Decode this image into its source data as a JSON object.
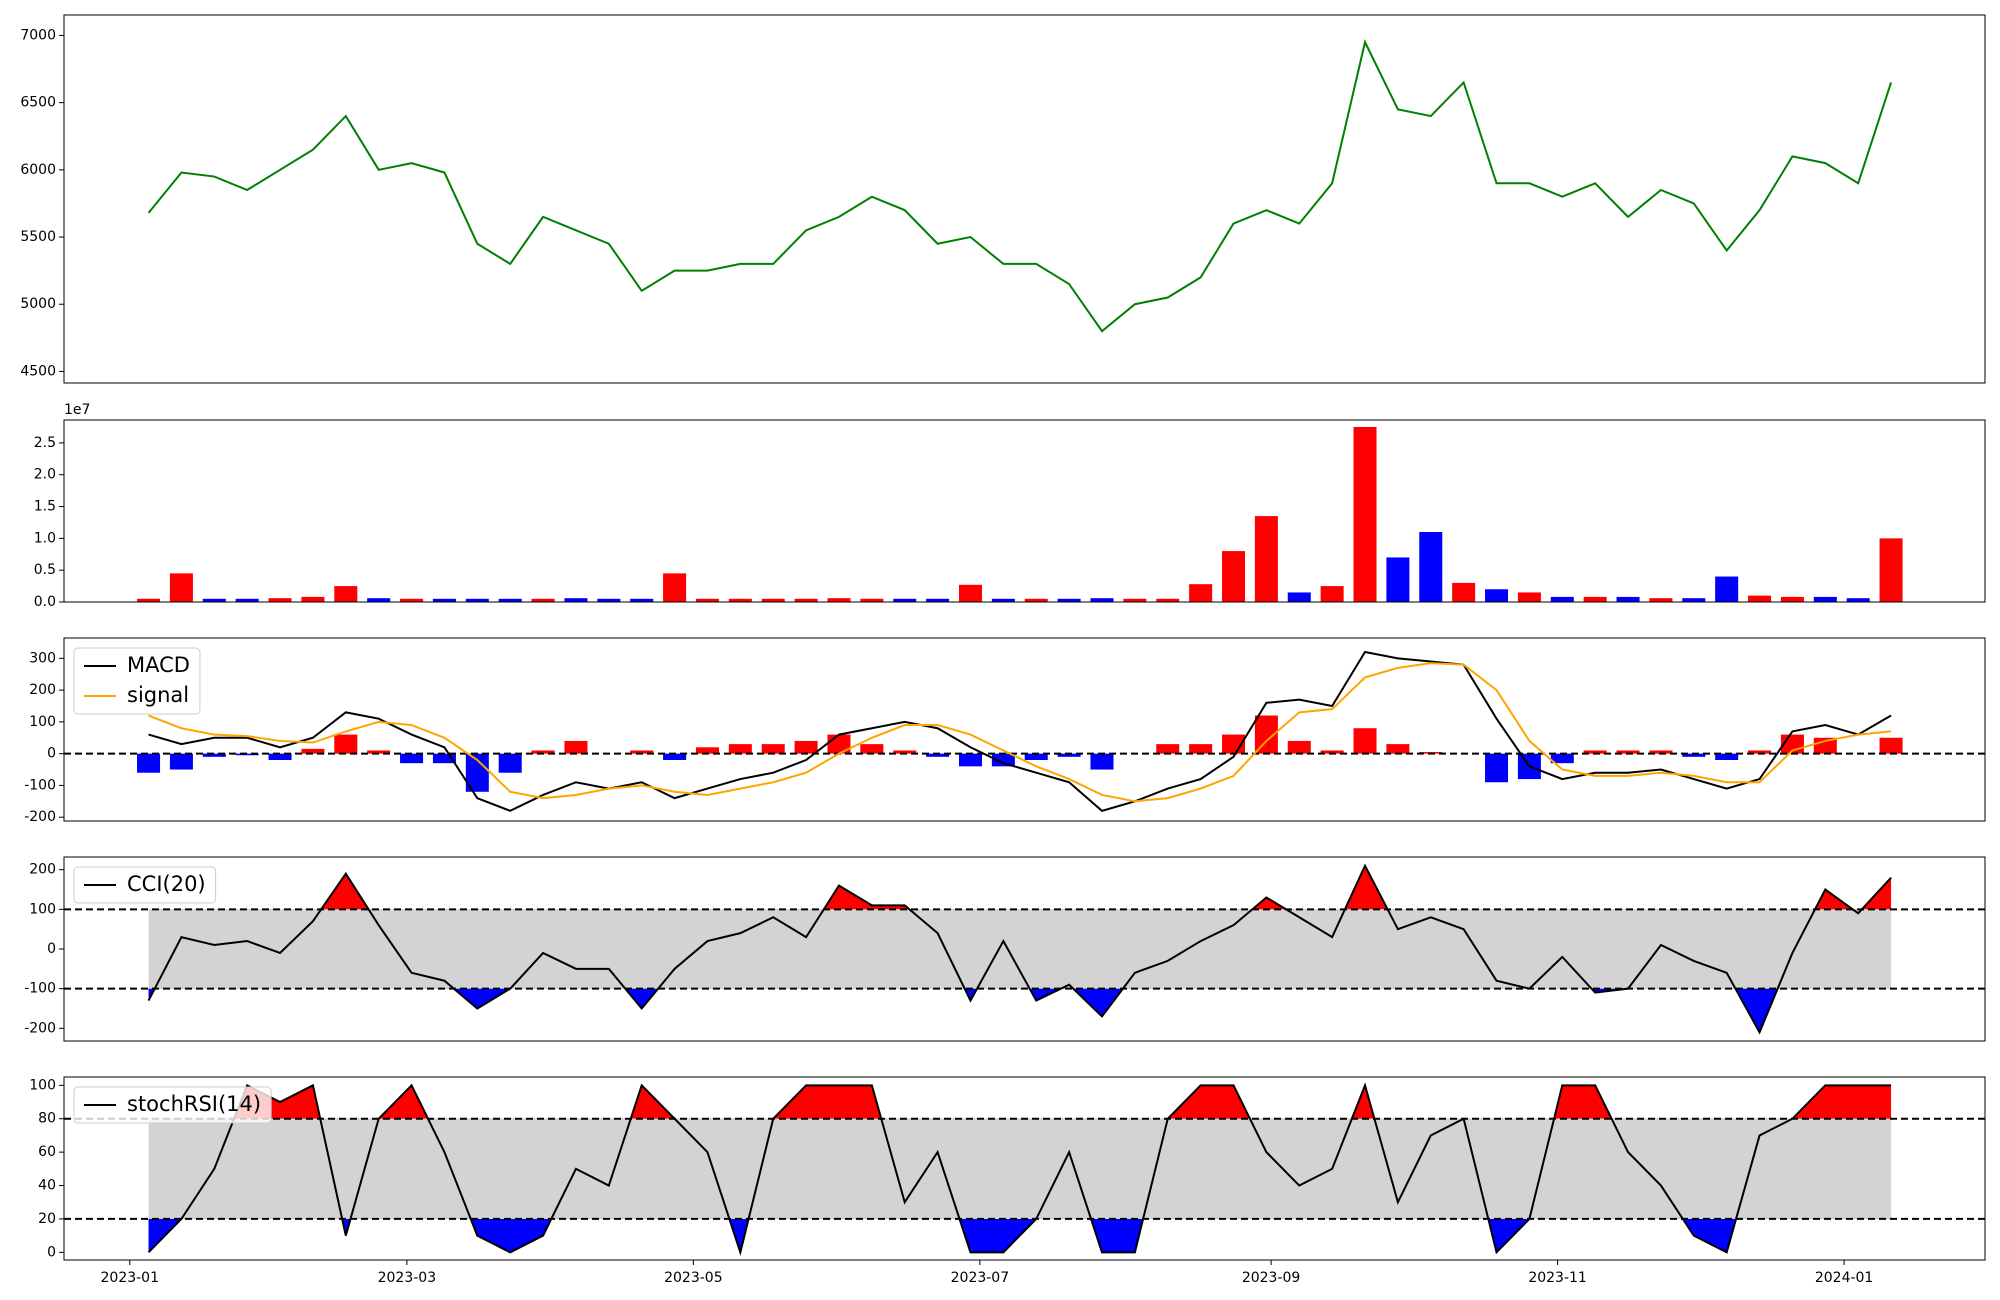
{
  "chart_data": [
    {
      "type": "line",
      "x": [
        4,
        11,
        18,
        25,
        32,
        39,
        46,
        53,
        60,
        67,
        74,
        81,
        88,
        95,
        102,
        109,
        116,
        123,
        130,
        137,
        144,
        151,
        158,
        165,
        172,
        179,
        186,
        193,
        200,
        207,
        214,
        221,
        228,
        235,
        242,
        249,
        256,
        263,
        270,
        277,
        284,
        291,
        298,
        305,
        312,
        319,
        326,
        333,
        340,
        347,
        354,
        361,
        368,
        375
      ],
      "series": [
        {
          "color": "green",
          "values": [
            5680,
            5980,
            5950,
            5850,
            6000,
            6150,
            6400,
            6000,
            6050,
            5980,
            5450,
            5300,
            5650,
            5550,
            5450,
            5100,
            5250,
            5250,
            5300,
            5300,
            5550,
            5650,
            5800,
            5700,
            5450,
            5500,
            5300,
            5300,
            5150,
            4800,
            5000,
            5050,
            5200,
            5600,
            5700,
            5600,
            5900,
            6950,
            6450,
            6400,
            6650,
            5900,
            5900,
            5800,
            5900,
            5650,
            5850,
            5750,
            5400,
            5700,
            6100,
            6050,
            5900,
            6650
          ]
        }
      ],
      "xlim": [
        -14,
        395
      ],
      "ylim": [
        4414,
        7152
      ],
      "yticks": [
        4500,
        5000,
        5500,
        6000,
        6500,
        7000
      ]
    },
    {
      "type": "bar",
      "x": [
        4,
        11,
        18,
        25,
        32,
        39,
        46,
        53,
        60,
        67,
        74,
        81,
        88,
        95,
        102,
        109,
        116,
        123,
        130,
        137,
        144,
        151,
        158,
        165,
        172,
        179,
        186,
        193,
        200,
        207,
        214,
        221,
        228,
        235,
        242,
        249,
        256,
        263,
        270,
        277,
        284,
        291,
        298,
        305,
        312,
        319,
        326,
        333,
        340,
        347,
        354,
        361,
        368,
        375
      ],
      "values": [
        0.05,
        0.45,
        0.05,
        0.05,
        0.06,
        0.08,
        0.25,
        0.06,
        0.05,
        0.05,
        0.05,
        0.05,
        0.05,
        0.06,
        0.05,
        0.05,
        0.45,
        0.05,
        0.05,
        0.05,
        0.05,
        0.06,
        0.05,
        0.05,
        0.05,
        0.27,
        0.05,
        0.05,
        0.05,
        0.06,
        0.05,
        0.05,
        0.28,
        0.8,
        1.35,
        0.15,
        0.25,
        2.75,
        0.7,
        1.1,
        0.3,
        0.2,
        0.15,
        0.08,
        0.08,
        0.08,
        0.06,
        0.06,
        0.4,
        0.1,
        0.08,
        0.08,
        0.06,
        1.0
      ],
      "up_color": "red",
      "down_color": "blue",
      "offset_label": "1e7",
      "xlim": [
        -14,
        395
      ],
      "ylim": [
        0,
        2.86
      ],
      "yticks": [
        {
          "value": 0,
          "label": "0.0"
        },
        0.5,
        {
          "value": 1,
          "label": "1.0"
        },
        1.5,
        {
          "value": 2,
          "label": "2.0"
        },
        2.5
      ]
    },
    {
      "type": "line",
      "x": [
        4,
        11,
        18,
        25,
        32,
        39,
        46,
        53,
        60,
        67,
        74,
        81,
        88,
        95,
        102,
        109,
        116,
        123,
        130,
        137,
        144,
        151,
        158,
        165,
        172,
        179,
        186,
        193,
        200,
        207,
        214,
        221,
        228,
        235,
        242,
        249,
        256,
        263,
        270,
        277,
        284,
        291,
        298,
        305,
        312,
        319,
        326,
        333,
        340,
        347,
        354,
        361,
        368,
        375
      ],
      "series": [
        {
          "name": "MACD",
          "color": "black",
          "values": [
            60,
            30,
            50,
            50,
            20,
            50,
            130,
            110,
            60,
            20,
            -140,
            -180,
            -130,
            -90,
            -110,
            -90,
            -140,
            -110,
            -80,
            -60,
            -20,
            60,
            80,
            100,
            80,
            20,
            -30,
            -60,
            -90,
            -180,
            -150,
            -110,
            -80,
            -10,
            160,
            170,
            150,
            320,
            300,
            290,
            280,
            110,
            -40,
            -80,
            -60,
            -60,
            -50,
            -80,
            -110,
            -80,
            70,
            90,
            60,
            120
          ]
        },
        {
          "name": "signal",
          "color": "orange",
          "values": [
            120,
            80,
            60,
            55,
            40,
            35,
            70,
            100,
            90,
            50,
            -20,
            -120,
            -140,
            -130,
            -110,
            -100,
            -120,
            -130,
            -110,
            -90,
            -60,
            0,
            50,
            90,
            90,
            60,
            10,
            -40,
            -80,
            -130,
            -150,
            -140,
            -110,
            -70,
            40,
            130,
            140,
            240,
            270,
            285,
            280,
            200,
            40,
            -50,
            -70,
            -70,
            -60,
            -70,
            -90,
            -90,
            10,
            40,
            60,
            70
          ]
        }
      ],
      "histogram": {
        "values": [
          -60,
          -50,
          -10,
          -5,
          -20,
          15,
          60,
          10,
          -30,
          -30,
          -120,
          -60,
          10,
          40,
          0,
          10,
          -20,
          20,
          30,
          30,
          40,
          60,
          30,
          10,
          -10,
          -40,
          -40,
          -20,
          -10,
          -50,
          0,
          30,
          30,
          60,
          120,
          40,
          10,
          80,
          30,
          5,
          0,
          -90,
          -80,
          -30,
          10,
          10,
          10,
          -10,
          -20,
          10,
          60,
          50,
          0,
          50
        ],
        "up_color": "red",
        "down_color": "blue"
      },
      "thresholds": [
        0
      ],
      "legend": "upper left",
      "xlim": [
        -14,
        395
      ],
      "ylim": [
        -212,
        364
      ],
      "yticks": [
        -200,
        -100,
        0,
        100,
        200,
        300
      ]
    },
    {
      "type": "line",
      "x": [
        4,
        11,
        18,
        25,
        32,
        39,
        46,
        53,
        60,
        67,
        74,
        81,
        88,
        95,
        102,
        109,
        116,
        123,
        130,
        137,
        144,
        151,
        158,
        165,
        172,
        179,
        186,
        193,
        200,
        207,
        214,
        221,
        228,
        235,
        242,
        249,
        256,
        263,
        270,
        277,
        284,
        291,
        298,
        305,
        312,
        319,
        326,
        333,
        340,
        347,
        354,
        361,
        368,
        375
      ],
      "series": [
        {
          "name": "CCI(20)",
          "color": "black",
          "values": [
            -130,
            30,
            10,
            20,
            -10,
            70,
            190,
            60,
            -60,
            -80,
            -150,
            -100,
            -10,
            -50,
            -50,
            -150,
            -50,
            20,
            40,
            80,
            30,
            160,
            110,
            110,
            40,
            -130,
            20,
            -130,
            -90,
            -170,
            -60,
            -30,
            20,
            60,
            130,
            80,
            30,
            210,
            50,
            80,
            50,
            -80,
            -100,
            -20,
            -110,
            -100,
            10,
            -30,
            -60,
            -210,
            -10,
            150,
            90,
            180
          ]
        }
      ],
      "thresholds": [
        -100,
        100
      ],
      "band_color": "lightgray",
      "above_color": "red",
      "below_color": "blue",
      "legend": "upper left",
      "xlim": [
        -14,
        395
      ],
      "ylim": [
        -232,
        232
      ],
      "yticks": [
        -200,
        -100,
        0,
        100,
        200
      ]
    },
    {
      "type": "line",
      "x": [
        4,
        11,
        18,
        25,
        32,
        39,
        46,
        53,
        60,
        67,
        74,
        81,
        88,
        95,
        102,
        109,
        116,
        123,
        130,
        137,
        144,
        151,
        158,
        165,
        172,
        179,
        186,
        193,
        200,
        207,
        214,
        221,
        228,
        235,
        242,
        249,
        256,
        263,
        270,
        277,
        284,
        291,
        298,
        305,
        312,
        319,
        326,
        333,
        340,
        347,
        354,
        361,
        368,
        375
      ],
      "series": [
        {
          "name": "stochRSI(14)",
          "color": "black",
          "values": [
            0,
            20,
            50,
            100,
            90,
            100,
            10,
            80,
            100,
            60,
            10,
            0,
            10,
            50,
            40,
            100,
            80,
            60,
            0,
            80,
            100,
            100,
            100,
            30,
            60,
            0,
            0,
            20,
            60,
            0,
            0,
            80,
            100,
            100,
            60,
            40,
            50,
            100,
            30,
            70,
            80,
            0,
            20,
            100,
            100,
            60,
            40,
            10,
            0,
            70,
            80,
            100,
            100,
            100
          ]
        }
      ],
      "thresholds": [
        20,
        80
      ],
      "band_color": "lightgray",
      "above_color": "red",
      "below_color": "blue",
      "legend": "upper left",
      "xlim": [
        -14,
        395
      ],
      "ylim": [
        -4.6,
        105
      ],
      "yticks": [
        0,
        20,
        40,
        60,
        80,
        100
      ],
      "xticks": [
        {
          "value": 0,
          "label": "2023-01"
        },
        {
          "value": 59,
          "label": "2023-03"
        },
        {
          "value": 120,
          "label": "2023-05"
        },
        {
          "value": 181,
          "label": "2023-07"
        },
        {
          "value": 243,
          "label": "2023-09"
        },
        {
          "value": 304,
          "label": "2023-11"
        },
        {
          "value": 365,
          "label": "2024-01"
        }
      ]
    }
  ]
}
